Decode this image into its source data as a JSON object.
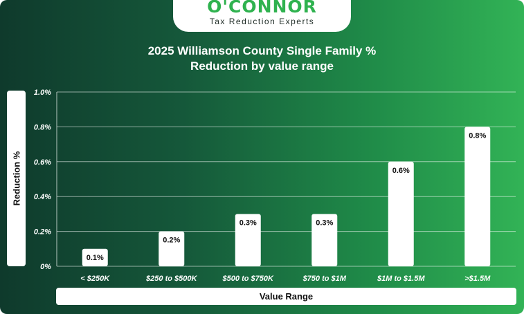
{
  "brand": {
    "name": "O'CONNOR",
    "tagline": "Tax Reduction Experts"
  },
  "colors": {
    "accent": "#2fb24f",
    "bar": "#ffffff",
    "background_start": "#0f3a2c",
    "background_end": "#32b356"
  },
  "chart_data": {
    "type": "bar",
    "title_line1": "2025 Williamson County Single Family %",
    "title_line2": "Reduction by value range",
    "xlabel": "Value Range",
    "ylabel": "Reduction %",
    "categories": [
      "< $250K",
      "$250 to $500K",
      "$500 to $750K",
      "$750 to $1M",
      "$1M to $1.5M",
      ">$1.5M"
    ],
    "values": [
      0.1,
      0.2,
      0.3,
      0.3,
      0.6,
      0.8
    ],
    "data_labels": [
      "0.1%",
      "0.2%",
      "0.3%",
      "0.3%",
      "0.6%",
      "0.8%"
    ],
    "ylim": [
      0,
      1.0
    ],
    "yticks": [
      0,
      0.2,
      0.4,
      0.6,
      0.8,
      1.0
    ],
    "ytick_labels": [
      "0%",
      "0.2%",
      "0.4%",
      "0.6%",
      "0.8%",
      "1.0%"
    ],
    "grid": true,
    "legend": "none"
  }
}
